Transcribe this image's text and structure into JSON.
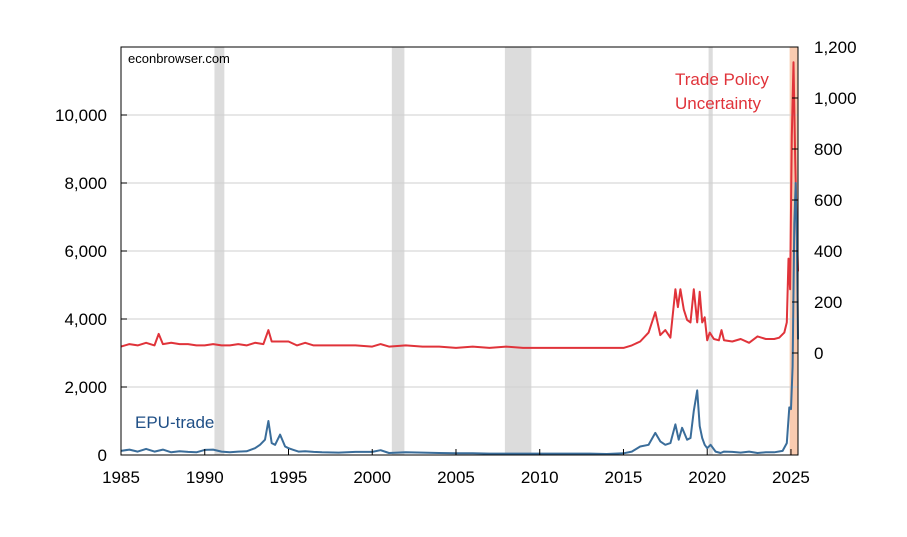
{
  "chart_data": {
    "type": "line",
    "watermark": "econbrowser.com",
    "title": "",
    "xlabel": "",
    "ylabel_left": "",
    "ylabel_right": "",
    "xlim": [
      1985.0,
      2025.42
    ],
    "ylim_left": [
      0,
      12000
    ],
    "ylim_right": [
      -400,
      1200
    ],
    "x_ticks": [
      1985,
      1990,
      1995,
      2000,
      2005,
      2010,
      2015,
      2020,
      2025
    ],
    "y_ticks_left": [
      {
        "value": 0,
        "label": "0"
      },
      {
        "value": 2000,
        "label": "2,000"
      },
      {
        "value": 4000,
        "label": "4,000"
      },
      {
        "value": 6000,
        "label": "6,000"
      },
      {
        "value": 8000,
        "label": "8,000"
      },
      {
        "value": 10000,
        "label": "10,000"
      }
    ],
    "y_ticks_right": [
      {
        "value": 0,
        "label": "0"
      },
      {
        "value": 200,
        "label": "200"
      },
      {
        "value": 400,
        "label": "400"
      },
      {
        "value": 600,
        "label": "600"
      },
      {
        "value": 800,
        "label": "800"
      },
      {
        "value": 1000,
        "label": "1,000"
      },
      {
        "value": 1200,
        "label": "1,200"
      }
    ],
    "grid": true,
    "recessions": [
      [
        1990.58,
        1991.17
      ],
      [
        2001.17,
        2001.92
      ],
      [
        2007.92,
        2009.5
      ],
      [
        2020.08,
        2020.33
      ]
    ],
    "highlight_period": [
      2024.92,
      2025.42
    ],
    "series": [
      {
        "name": "Trade Policy Uncertainty",
        "axis": "right",
        "color": "#e0333a",
        "x": [
          1985.0,
          1985.5,
          1986.0,
          1986.5,
          1987.0,
          1987.25,
          1987.5,
          1988.0,
          1988.5,
          1989.0,
          1989.5,
          1990.0,
          1990.5,
          1991.0,
          1991.5,
          1992.0,
          1992.5,
          1993.0,
          1993.5,
          1993.8,
          1994.0,
          1994.5,
          1995.0,
          1995.5,
          1996.0,
          1996.5,
          1997.0,
          1998.0,
          1999.0,
          2000.0,
          2000.5,
          2001.0,
          2002.0,
          2003.0,
          2004.0,
          2005.0,
          2006.0,
          2007.0,
          2008.0,
          2009.0,
          2010.0,
          2011.0,
          2012.0,
          2013.0,
          2014.0,
          2015.0,
          2015.5,
          2016.0,
          2016.5,
          2016.9,
          2017.2,
          2017.5,
          2017.8,
          2018.1,
          2018.25,
          2018.4,
          2018.6,
          2018.8,
          2019.0,
          2019.2,
          2019.4,
          2019.55,
          2019.7,
          2019.85,
          2020.0,
          2020.15,
          2020.4,
          2020.7,
          2020.85,
          2021.0,
          2021.5,
          2022.0,
          2022.5,
          2023.0,
          2023.5,
          2024.0,
          2024.3,
          2024.6,
          2024.75,
          2024.85,
          2024.95,
          2025.05,
          2025.15,
          2025.25,
          2025.35,
          2025.42
        ],
        "values": [
          25,
          35,
          30,
          40,
          30,
          75,
          35,
          40,
          35,
          35,
          30,
          30,
          35,
          30,
          30,
          35,
          30,
          40,
          35,
          90,
          45,
          45,
          45,
          30,
          40,
          30,
          30,
          30,
          30,
          25,
          35,
          25,
          30,
          25,
          25,
          20,
          25,
          20,
          25,
          20,
          20,
          20,
          20,
          20,
          20,
          20,
          30,
          45,
          80,
          160,
          70,
          90,
          60,
          250,
          180,
          250,
          170,
          130,
          120,
          250,
          120,
          240,
          120,
          140,
          50,
          80,
          55,
          50,
          90,
          50,
          45,
          55,
          40,
          65,
          55,
          55,
          60,
          80,
          120,
          370,
          250,
          850,
          1140,
          760,
          480,
          320
        ]
      },
      {
        "name": "EPU-trade",
        "axis": "left",
        "color": "#3a6d9a",
        "x": [
          1985.0,
          1985.5,
          1986.0,
          1986.5,
          1987.0,
          1987.5,
          1988.0,
          1988.5,
          1989.0,
          1989.5,
          1990.0,
          1990.5,
          1991.0,
          1991.5,
          1992.0,
          1992.5,
          1993.0,
          1993.3,
          1993.6,
          1993.8,
          1994.0,
          1994.2,
          1994.5,
          1994.8,
          1995.0,
          1995.3,
          1995.6,
          1996.0,
          1996.5,
          1997.0,
          1998.0,
          1999.0,
          2000.0,
          2000.5,
          2001.0,
          2002.0,
          2003.0,
          2004.0,
          2005.0,
          2006.0,
          2007.0,
          2008.0,
          2009.0,
          2010.0,
          2011.0,
          2012.0,
          2013.0,
          2014.0,
          2015.0,
          2015.5,
          2016.0,
          2016.5,
          2016.9,
          2017.2,
          2017.5,
          2017.8,
          2018.1,
          2018.3,
          2018.5,
          2018.8,
          2019.0,
          2019.2,
          2019.4,
          2019.55,
          2019.7,
          2019.85,
          2020.0,
          2020.2,
          2020.5,
          2020.8,
          2021.0,
          2021.5,
          2022.0,
          2022.5,
          2023.0,
          2023.5,
          2024.0,
          2024.5,
          2024.75,
          2024.9,
          2025.0,
          2025.1,
          2025.2,
          2025.28,
          2025.35,
          2025.42
        ],
        "values": [
          120,
          160,
          100,
          180,
          100,
          160,
          80,
          110,
          90,
          80,
          150,
          160,
          100,
          80,
          100,
          110,
          200,
          300,
          450,
          1000,
          350,
          300,
          600,
          250,
          200,
          150,
          100,
          110,
          90,
          80,
          70,
          90,
          90,
          140,
          60,
          80,
          70,
          60,
          50,
          50,
          40,
          40,
          40,
          40,
          40,
          40,
          40,
          30,
          50,
          100,
          250,
          300,
          650,
          400,
          300,
          350,
          900,
          450,
          800,
          450,
          500,
          1300,
          1900,
          850,
          500,
          300,
          200,
          300,
          100,
          60,
          100,
          90,
          70,
          100,
          60,
          80,
          80,
          120,
          350,
          1400,
          1350,
          2600,
          6800,
          8000,
          6500,
          3400
        ]
      }
    ],
    "annotations": {
      "red_label": [
        "Trade Policy",
        "Uncertainty"
      ],
      "blue_label": "EPU-trade"
    }
  }
}
